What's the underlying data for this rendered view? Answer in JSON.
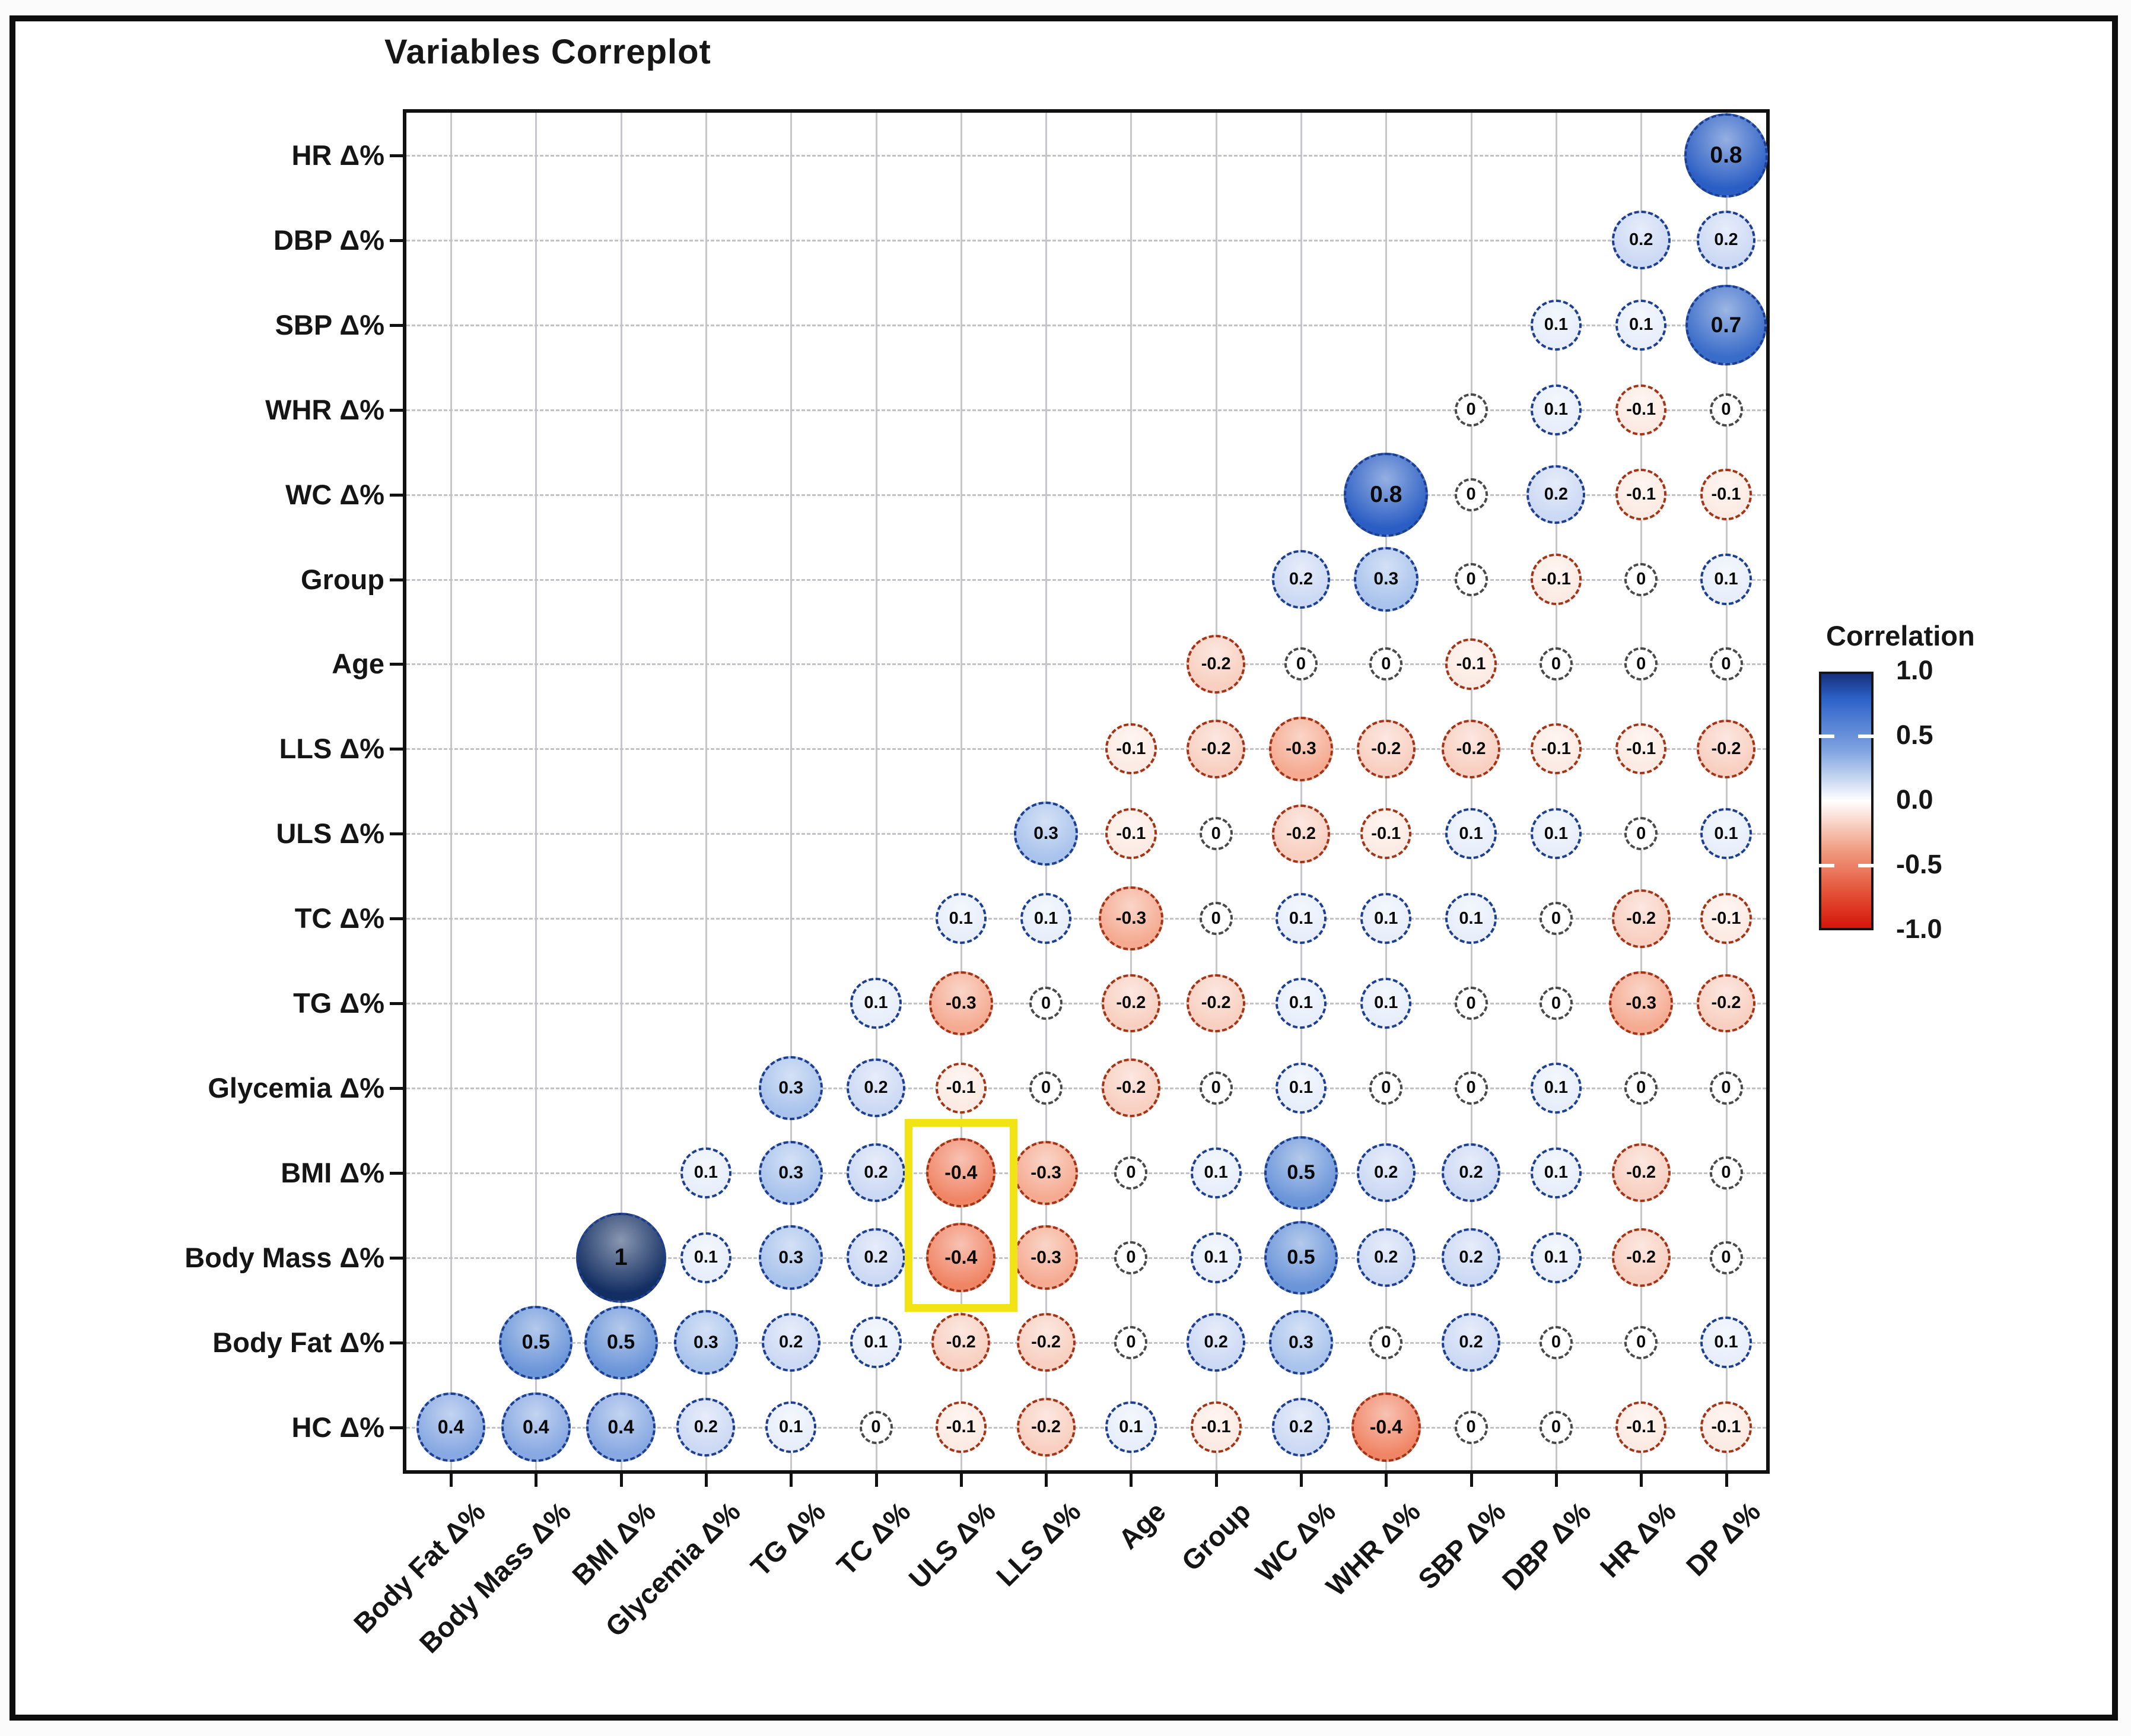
{
  "title": "Variables Correplot",
  "chart_data": {
    "type": "heatmap",
    "subtype": "correlogram-bubble-upper-triangle",
    "title": "Variables Correplot",
    "variables": [
      "HC Δ%",
      "Body Fat Δ%",
      "Body Mass Δ%",
      "BMI Δ%",
      "Glycemia Δ%",
      "TG Δ%",
      "TC Δ%",
      "ULS Δ%",
      "LLS Δ%",
      "Age",
      "Group",
      "WC Δ%",
      "WHR Δ%",
      "SBP Δ%",
      "DBP Δ%",
      "HR Δ%",
      "DP Δ%"
    ],
    "x_axis_labels": [
      "Body Fat Δ%",
      "Body Mass Δ%",
      "BMI Δ%",
      "Glycemia Δ%",
      "TG Δ%",
      "TC Δ%",
      "ULS Δ%",
      "LLS Δ%",
      "Age",
      "Group",
      "WC Δ%",
      "WHR Δ%",
      "SBP Δ%",
      "DBP Δ%",
      "HR Δ%",
      "DP Δ%"
    ],
    "y_axis_labels": [
      "HR Δ%",
      "DBP Δ%",
      "SBP Δ%",
      "WHR Δ%",
      "WC Δ%",
      "Group",
      "Age",
      "LLS Δ%",
      "ULS Δ%",
      "TC Δ%",
      "TG Δ%",
      "Glycemia Δ%",
      "BMI Δ%",
      "Body Mass Δ%",
      "Body Fat Δ%",
      "HC Δ%"
    ],
    "value_range": [
      -1,
      1
    ],
    "grid": true,
    "pairs": {
      "HC Δ%": [
        0.4,
        0.4,
        0.4,
        0.2,
        0.1,
        0,
        -0.1,
        -0.2,
        0.1,
        -0.1,
        0.2,
        -0.4,
        0,
        0,
        -0.1,
        -0.1
      ],
      "Body Fat Δ%": [
        0.5,
        0.5,
        0.3,
        0.2,
        0.1,
        -0.2,
        -0.2,
        0,
        0.2,
        0.3,
        0,
        0.2,
        0,
        0,
        0.1
      ],
      "Body Mass Δ%": [
        1,
        0.1,
        0.3,
        0.2,
        -0.4,
        -0.3,
        0,
        0.1,
        0.5,
        0.2,
        0.2,
        0.1,
        -0.2,
        0
      ],
      "BMI Δ%": [
        0.1,
        0.3,
        0.2,
        -0.4,
        -0.3,
        0,
        0.1,
        0.5,
        0.2,
        0.2,
        0.1,
        -0.2,
        0
      ],
      "Glycemia Δ%": [
        0.3,
        0.2,
        -0.1,
        0,
        -0.2,
        0,
        0.1,
        0,
        0,
        0.1,
        0,
        0
      ],
      "TG Δ%": [
        0.1,
        -0.3,
        0,
        -0.2,
        -0.2,
        0.1,
        0.1,
        0,
        0,
        -0.3,
        -0.2
      ],
      "TC Δ%": [
        0.1,
        0.1,
        -0.3,
        0,
        0.1,
        0.1,
        0.1,
        0,
        -0.2,
        -0.1
      ],
      "ULS Δ%": [
        0.3,
        -0.1,
        0,
        -0.2,
        -0.1,
        0.1,
        0.1,
        0,
        0.1
      ],
      "LLS Δ%": [
        -0.1,
        -0.2,
        -0.3,
        -0.2,
        -0.2,
        -0.1,
        -0.1,
        -0.2
      ],
      "Age": [
        -0.2,
        0,
        0,
        -0.1,
        0,
        0,
        0
      ],
      "Group": [
        0.2,
        0.3,
        0,
        -0.1,
        0,
        0.1
      ],
      "WC Δ%": [
        0.8,
        0,
        0.2,
        -0.1,
        -0.1
      ],
      "WHR Δ%": [
        0,
        0.1,
        -0.1,
        0
      ],
      "SBP Δ%": [
        0.1,
        0.1,
        0.7
      ],
      "DBP Δ%": [
        0.2,
        0.2
      ],
      "HR Δ%": [
        0.8
      ]
    },
    "legend": {
      "title": "Correlation",
      "tick_labels": [
        "1.0",
        "0.5",
        "0.0",
        "-0.5",
        "-1.0"
      ],
      "position": "right"
    },
    "highlight": {
      "rows": [
        "BMI Δ%",
        "Body Mass Δ%"
      ],
      "column": "ULS Δ%",
      "color": "#f2e414"
    },
    "colors": {
      "panel_border": "#111111",
      "grid_vertical": "#c7c7cb",
      "grid_horizontal": "#c2c2c7",
      "circle_text": "#0a0a0a",
      "positive_border": "#1e3f8f",
      "negative_border": "#a23418",
      "zero_border": "#4a4a4a",
      "highlight": "#f2e414",
      "positive_ramp": [
        [
          0,
          "#ffffff"
        ],
        [
          0.1,
          "#e7eefa"
        ],
        [
          0.2,
          "#ccd9f4"
        ],
        [
          0.3,
          "#a9c3ec"
        ],
        [
          0.4,
          "#87a8e2"
        ],
        [
          0.5,
          "#6b95d9"
        ],
        [
          0.7,
          "#3a6cc9"
        ],
        [
          0.8,
          "#2b5ec4"
        ],
        [
          1,
          "#132e62"
        ]
      ],
      "negative_ramp": [
        [
          0,
          "#ffffff"
        ],
        [
          0.1,
          "#fceae3"
        ],
        [
          0.2,
          "#f8cfc0"
        ],
        [
          0.3,
          "#f5aa91"
        ],
        [
          0.4,
          "#f08566"
        ],
        [
          0.5,
          "#ec6947"
        ],
        [
          1,
          "#d11507"
        ]
      ],
      "legend_gradient": [
        "#16307c",
        "#2e62c9",
        "#7fa3e0",
        "#ffffff",
        "#f0997e",
        "#e24930",
        "#d6150a"
      ]
    }
  }
}
